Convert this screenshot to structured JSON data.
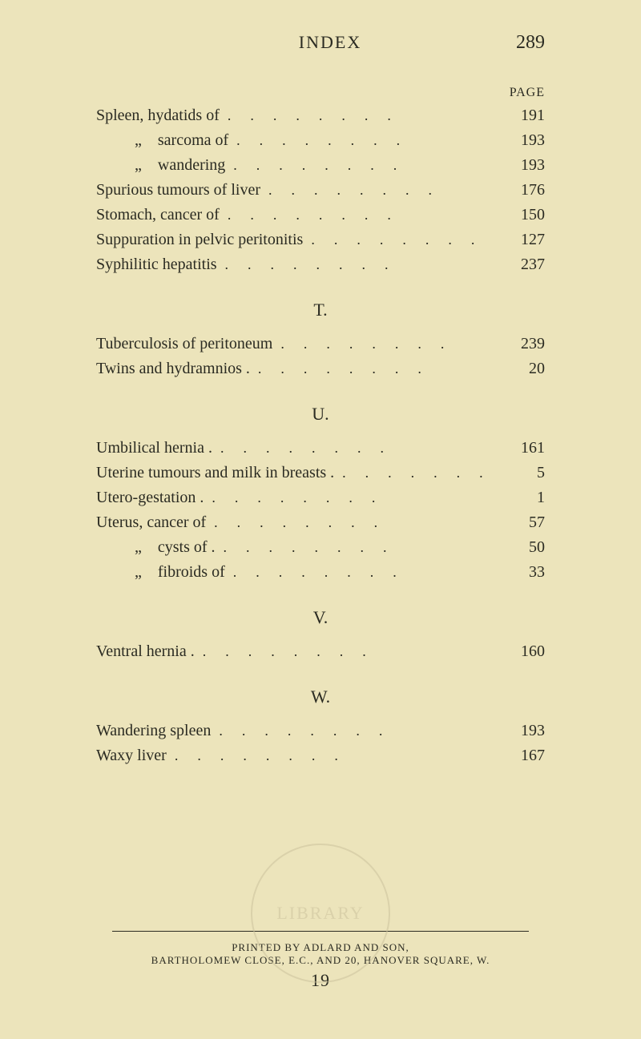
{
  "colors": {
    "background": "#ece4bb",
    "text": "#2b2b22",
    "stamp": "#c9c09a"
  },
  "header": {
    "title": "INDEX",
    "page_number": "289",
    "page_label": "PAGE"
  },
  "sections": [
    {
      "letter": null,
      "entries": [
        {
          "label": "Spleen, hydatids of",
          "page": "191",
          "indent": 0
        },
        {
          "label": "„    sarcoma of",
          "page": "193",
          "indent": 1
        },
        {
          "label": "„    wandering",
          "page": "193",
          "indent": 1
        },
        {
          "label": "Spurious tumours of liver",
          "page": "176",
          "indent": 0
        },
        {
          "label": "Stomach, cancer of",
          "page": "150",
          "indent": 0
        },
        {
          "label": "Suppuration in pelvic peritonitis",
          "page": "127",
          "indent": 0
        },
        {
          "label": "Syphilitic hepatitis",
          "page": "237",
          "indent": 0
        }
      ]
    },
    {
      "letter": "T.",
      "entries": [
        {
          "label": "Tuberculosis of peritoneum",
          "page": "239",
          "indent": 0
        },
        {
          "label": "Twins and hydramnios .",
          "page": "20",
          "indent": 0
        }
      ]
    },
    {
      "letter": "U.",
      "entries": [
        {
          "label": "Umbilical hernia .",
          "page": "161",
          "indent": 0
        },
        {
          "label": "Uterine tumours and milk in breasts .",
          "page": "5",
          "indent": 0
        },
        {
          "label": "Utero-gestation .",
          "page": "1",
          "indent": 0
        },
        {
          "label": "Uterus, cancer of",
          "page": "57",
          "indent": 0
        },
        {
          "label": "„    cysts of .",
          "page": "50",
          "indent": 1
        },
        {
          "label": "„    fibroids of",
          "page": "33",
          "indent": 1
        }
      ]
    },
    {
      "letter": "V.",
      "entries": [
        {
          "label": "Ventral hernia .",
          "page": "160",
          "indent": 0
        }
      ]
    },
    {
      "letter": "W.",
      "entries": [
        {
          "label": "Wandering spleen",
          "page": "193",
          "indent": 0
        },
        {
          "label": "Waxy liver",
          "page": "167",
          "indent": 0
        }
      ]
    }
  ],
  "footer": {
    "line1": "PRINTED BY ADLARD AND SON,",
    "line2": "BARTHOLOMEW CLOSE, E.C., AND 20, HANOVER SQUARE, W.",
    "signature": "19"
  },
  "stamp_text": "LIBRARY",
  "dot_leader": "........"
}
